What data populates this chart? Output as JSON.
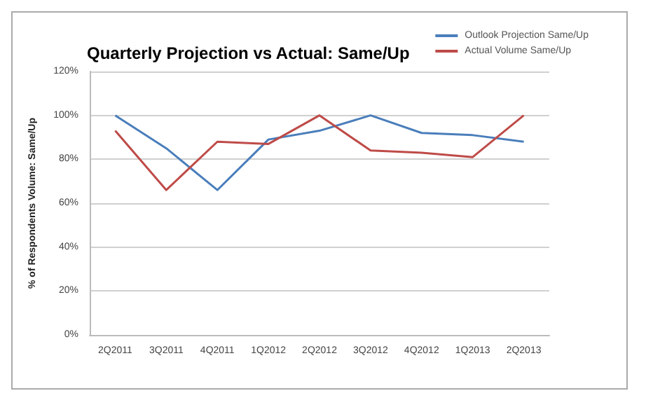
{
  "chart_data": {
    "type": "line",
    "title": "Quarterly Projection vs Actual: Same/Up",
    "ylabel": "% of Respondents Volume: Same/Up",
    "categories": [
      "2Q2011",
      "3Q2011",
      "4Q2011",
      "1Q2012",
      "2Q2012",
      "3Q2012",
      "4Q2012",
      "1Q2013",
      "2Q2013"
    ],
    "series": [
      {
        "name": "Outlook Projection Same/Up",
        "color": "#4a7ebb",
        "values": [
          100,
          85,
          66,
          89,
          93,
          100,
          92,
          91,
          88
        ]
      },
      {
        "name": "Actual Volume Same/Up",
        "color": "#be4b48",
        "values": [
          93,
          66,
          88,
          87,
          100,
          84,
          83,
          81,
          100
        ]
      }
    ],
    "ylim": [
      0,
      120
    ],
    "yticks": [
      {
        "value": 0,
        "label": "0%"
      },
      {
        "value": 20,
        "label": "20%"
      },
      {
        "value": 40,
        "label": "40%"
      },
      {
        "value": 60,
        "label": "60%"
      },
      {
        "value": 80,
        "label": "80%"
      },
      {
        "value": 100,
        "label": "100%"
      },
      {
        "value": 120,
        "label": "120%"
      }
    ],
    "grid": "y",
    "legend": "top right",
    "marker": "none",
    "line_style": "solid"
  }
}
